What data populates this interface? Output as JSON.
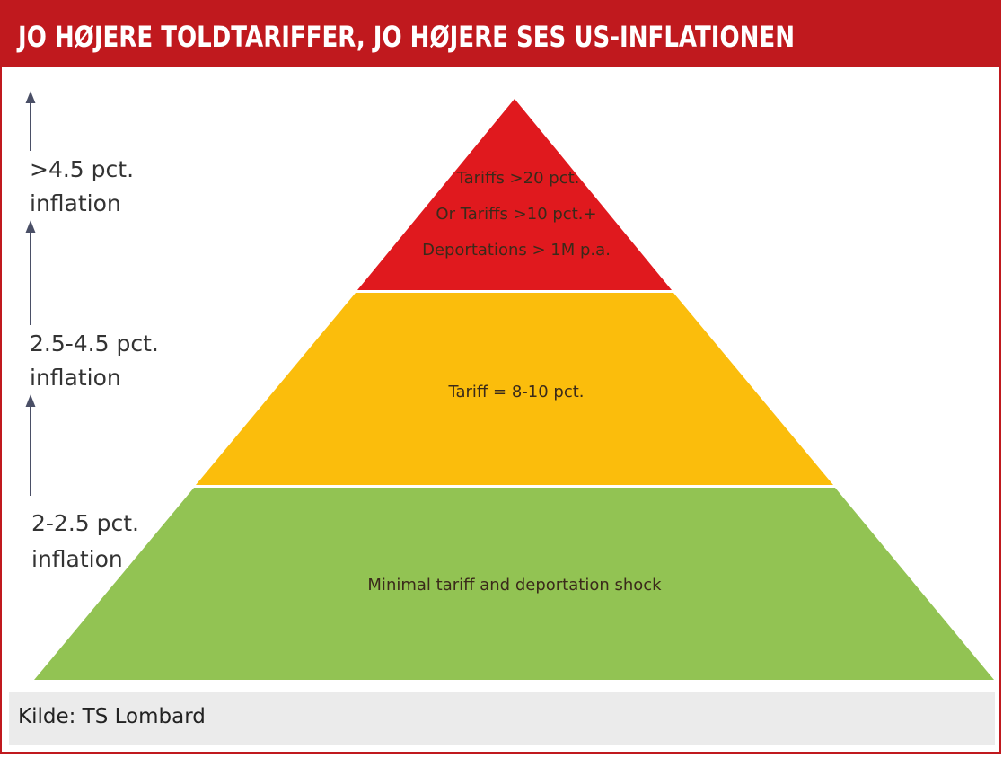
{
  "header": {
    "title": "JO HØJERE TOLDTARIFFER, JO HØJERE SES US-INFLATIONEN"
  },
  "levels": [
    {
      "label": [
        ">4.5 pct.",
        "inflation"
      ],
      "text": [
        "Tariffs >20 pct.",
        "Or Tariffs >10 pct.+",
        "Deportations > 1M p.a."
      ]
    },
    {
      "label": [
        "2.5-4.5 pct.",
        "inflation"
      ],
      "text": [
        "Tariff = 8-10 pct."
      ]
    },
    {
      "label": [
        "2-2.5 pct.",
        "inflation"
      ],
      "text": [
        "Minimal tariff and deportation shock"
      ]
    }
  ],
  "source": "Kilde: TS Lombard"
}
